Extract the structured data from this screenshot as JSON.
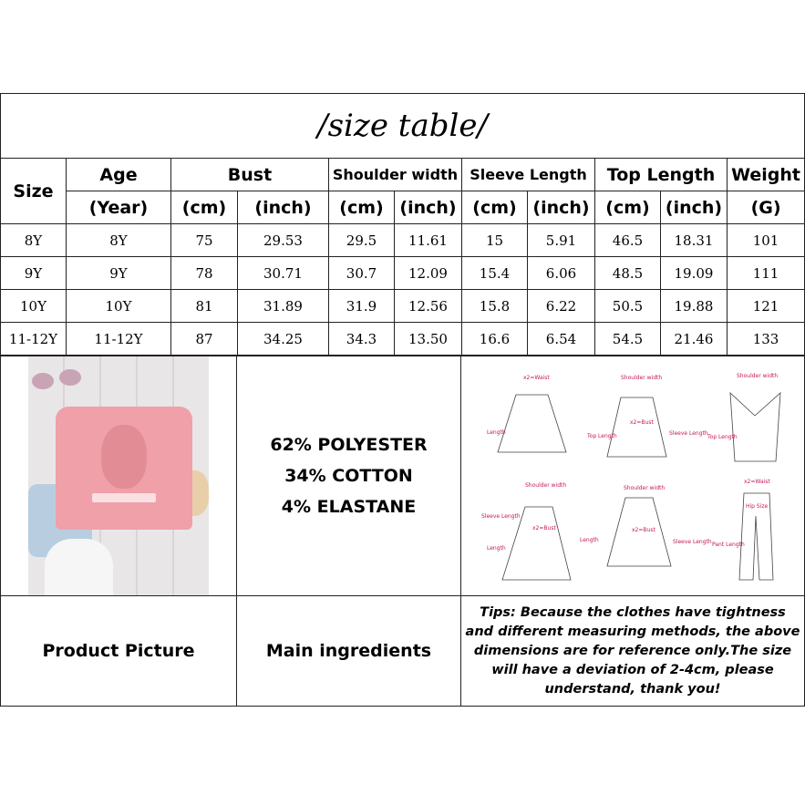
{
  "title": "/size table/",
  "headers": {
    "size": "Size",
    "age": "Age",
    "age_unit": "(Year)",
    "bust": "Bust",
    "shoulder": "Shoulder width",
    "sleeve": "Sleeve Length",
    "top": "Top Length",
    "weight": "Weight",
    "weight_unit": "(G)",
    "cm": "(cm)",
    "inch": "(inch)"
  },
  "rows": [
    [
      "8Y",
      "8Y",
      "75",
      "29.53",
      "29.5",
      "11.61",
      "15",
      "5.91",
      "46.5",
      "18.31",
      "101"
    ],
    [
      "9Y",
      "9Y",
      "78",
      "30.71",
      "30.7",
      "12.09",
      "15.4",
      "6.06",
      "48.5",
      "19.09",
      "111"
    ],
    [
      "10Y",
      "10Y",
      "81",
      "31.89",
      "31.9",
      "12.56",
      "15.8",
      "6.22",
      "50.5",
      "19.88",
      "121"
    ],
    [
      "11-12Y",
      "11-12Y",
      "87",
      "34.25",
      "34.3",
      "13.50",
      "16.6",
      "6.54",
      "54.5",
      "21.46",
      "133"
    ]
  ],
  "ingredients": [
    "62% POLYESTER",
    "34% COTTON",
    "4% ELASTANE"
  ],
  "product_picture_label": "Product Picture",
  "main_ingredients_label": "Main ingredients",
  "tips": "Tips: Because the clothes have tightness and different measuring methods, the above dimensions are for reference only.The size will have a deviation of 2-4cm, please understand, thank you!",
  "diagram_labels": {
    "waist": "x2=Waist",
    "shoulder": "Shoulder width",
    "length": "Length",
    "top_length": "Top Length",
    "sleeve_length": "Sleeve Length",
    "bust": "x2=Bust",
    "hip": "Hip Size",
    "pant_length": "Pant Length"
  },
  "colors": {
    "shirt": "#f0a0a8",
    "diagram_label": "#c2185b"
  }
}
